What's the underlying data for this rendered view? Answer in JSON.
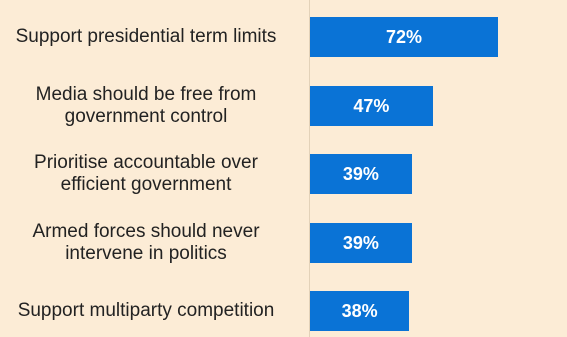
{
  "chart_data": {
    "type": "bar",
    "orientation": "horizontal",
    "categories": [
      "Support presidential term limits",
      "Media should be free from government control",
      "Prioritise accountable over efficient government",
      "Armed forces should never intervene in politics",
      "Support multiparty competition"
    ],
    "values": [
      72,
      47,
      39,
      39,
      38
    ],
    "value_labels": [
      "72%",
      "47%",
      "39%",
      "39%",
      "38%"
    ],
    "xlim": [
      0,
      100
    ],
    "grid": false,
    "legend": "none",
    "colors": {
      "bar": "#0a73d6",
      "background": "#fcecd6",
      "text": "#222222",
      "value_text": "#ffffff"
    }
  }
}
